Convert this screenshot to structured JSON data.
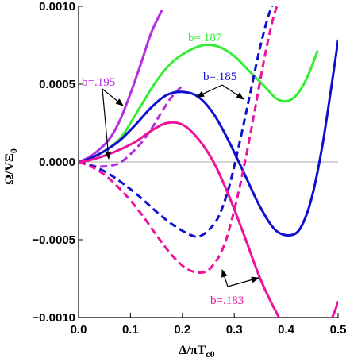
{
  "chart_data": {
    "type": "line",
    "xlabel": "Δ/πT_c0",
    "ylabel": "Ω/VΞ_0",
    "xlim": [
      0.0,
      0.5
    ],
    "ylim": [
      -0.001,
      0.001
    ],
    "x_ticks": [
      "0.0",
      "0.1",
      "0.2",
      "0.3",
      "0.4",
      "0.5"
    ],
    "y_ticks": [
      "−0.0010",
      "−0.0005",
      "0.0000",
      "0.0005",
      "0.0010"
    ],
    "grid": false,
    "zero_line": true,
    "series": [
      {
        "label": "b=.195",
        "color": "#b52ee0",
        "solid": {
          "x": [
            0,
            0.02,
            0.04,
            0.06,
            0.08,
            0.1,
            0.12,
            0.14,
            0.16
          ],
          "y": [
            0,
            3e-05,
            8e-05,
            0.00015,
            0.00027,
            0.00044,
            0.00063,
            0.00083,
            0.00097
          ]
        },
        "dashed": {
          "x": [
            0,
            0.02,
            0.04,
            0.06,
            0.08,
            0.1,
            0.12,
            0.14,
            0.16,
            0.18,
            0.2
          ],
          "y": [
            0,
            -2e-05,
            -3e-05,
            -2.5e-05,
            -5e-06,
            5e-05,
            0.00012,
            0.00021,
            0.00032,
            0.00042,
            0.00049
          ]
        }
      },
      {
        "label": "b=.187",
        "color": "#33ee33",
        "solid": {
          "x": [
            0,
            0.02,
            0.05,
            0.08,
            0.1,
            0.12,
            0.15,
            0.18,
            0.21,
            0.24,
            0.27,
            0.3,
            0.33,
            0.36,
            0.38,
            0.4,
            0.42,
            0.44,
            0.46
          ],
          "y": [
            0,
            2e-05,
            7e-05,
            0.00015,
            0.00025,
            0.00036,
            0.00052,
            0.00064,
            0.00071,
            0.00075,
            0.00074,
            0.00068,
            0.00058,
            0.00048,
            0.00041,
            0.00039,
            0.00043,
            0.00054,
            0.00071
          ]
        }
      },
      {
        "label": "b=.185",
        "color": "#1010d0",
        "solid": {
          "x": [
            0,
            0.02,
            0.05,
            0.08,
            0.11,
            0.14,
            0.17,
            0.2,
            0.23,
            0.26,
            0.29,
            0.32,
            0.35,
            0.38,
            0.41,
            0.43,
            0.45,
            0.47,
            0.49,
            0.5
          ],
          "y": [
            0,
            2e-05,
            7e-05,
            0.00014,
            0.00024,
            0.00035,
            0.00043,
            0.00045,
            0.00042,
            0.00031,
            0.00013,
            -8e-05,
            -0.00029,
            -0.00044,
            -0.00047,
            -0.00041,
            -0.00022,
            0.00011,
            0.00055,
            0.00078
          ]
        },
        "dashed": {
          "x": [
            0,
            0.03,
            0.06,
            0.09,
            0.12,
            0.15,
            0.18,
            0.21,
            0.23,
            0.25,
            0.27,
            0.29,
            0.31,
            0.33,
            0.35,
            0.37,
            0.39
          ],
          "y": [
            0,
            -3e-05,
            -8e-05,
            -0.00015,
            -0.00023,
            -0.00032,
            -0.0004,
            -0.00046,
            -0.00048,
            -0.00044,
            -0.00035,
            -0.00016,
            0.00012,
            0.00043,
            0.00074,
            0.00098,
            0.0011
          ]
        }
      },
      {
        "label": "b=.183",
        "color": "#ee1199",
        "solid": {
          "x": [
            0,
            0.02,
            0.05,
            0.08,
            0.11,
            0.14,
            0.17,
            0.2,
            0.23,
            0.26,
            0.29,
            0.32,
            0.35,
            0.38,
            0.4,
            0.45,
            0.47,
            0.49,
            0.5
          ],
          "y": [
            0,
            1e-05,
            4e-05,
            8e-05,
            0.00013,
            0.0002,
            0.00025,
            0.00024,
            0.00015,
            0.0,
            -0.00022,
            -0.00048,
            -0.00075,
            -0.00096,
            -0.00106,
            -0.00117,
            -0.00112,
            -0.00099,
            -0.0009
          ]
        },
        "dashed": {
          "x": [
            0,
            0.03,
            0.06,
            0.09,
            0.12,
            0.15,
            0.18,
            0.21,
            0.24,
            0.26,
            0.28,
            0.3,
            0.32,
            0.34,
            0.36,
            0.38,
            0.4
          ],
          "y": [
            0,
            -4e-05,
            -0.00011,
            -0.00021,
            -0.00033,
            -0.00047,
            -0.0006,
            -0.00069,
            -0.00071,
            -0.00066,
            -0.00054,
            -0.00031,
            -1e-05,
            0.00034,
            0.0007,
            0.00098,
            0.0011
          ]
        }
      }
    ]
  }
}
